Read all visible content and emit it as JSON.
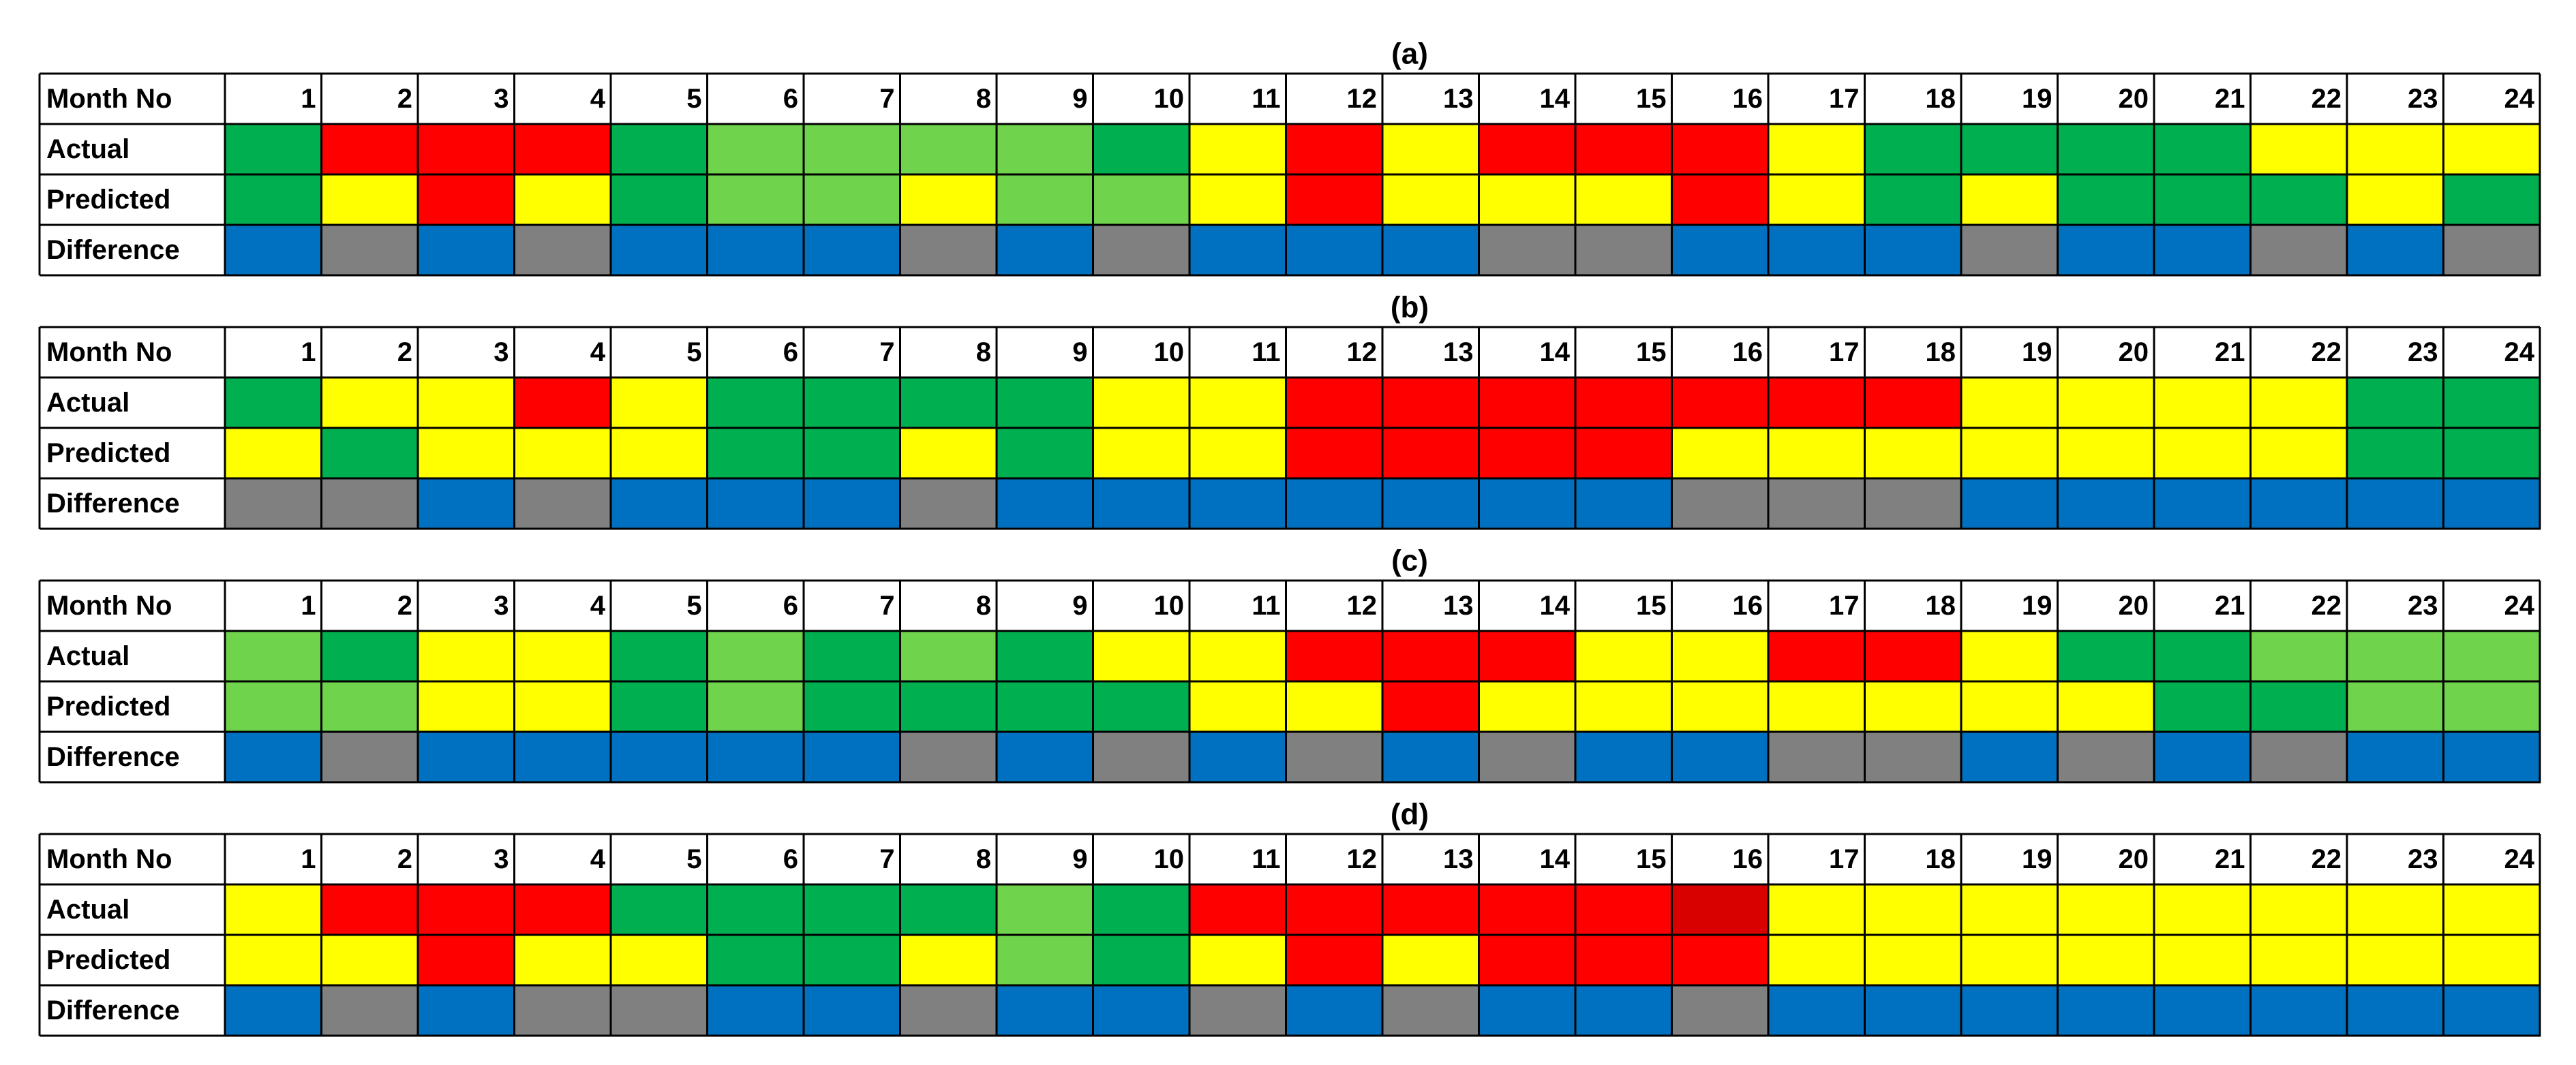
{
  "chart_data": {
    "type": "table",
    "months": [
      "1",
      "2",
      "3",
      "4",
      "5",
      "6",
      "7",
      "8",
      "9",
      "10",
      "11",
      "12",
      "13",
      "14",
      "15",
      "16",
      "17",
      "18",
      "19",
      "20",
      "21",
      "22",
      "23",
      "24"
    ],
    "row_labels": {
      "month": "Month No",
      "actual": "Actual",
      "predicted": "Predicted",
      "difference": "Difference"
    },
    "colors": {
      "dark_green": "#00B050",
      "light_green": "#6FD44C",
      "yellow": "#FFFF00",
      "red": "#FF0000",
      "dark_red": "#D90000",
      "blue": "#0070C0",
      "gray": "#808080"
    },
    "panels": [
      {
        "title": "(a)",
        "actual": [
          "dark_green",
          "red",
          "red",
          "red",
          "dark_green",
          "light_green",
          "light_green",
          "light_green",
          "light_green",
          "dark_green",
          "yellow",
          "red",
          "yellow",
          "red",
          "red",
          "red",
          "yellow",
          "dark_green",
          "dark_green",
          "dark_green",
          "dark_green",
          "yellow",
          "yellow",
          "yellow"
        ],
        "predicted": [
          "dark_green",
          "yellow",
          "red",
          "yellow",
          "dark_green",
          "light_green",
          "light_green",
          "yellow",
          "light_green",
          "light_green",
          "yellow",
          "red",
          "yellow",
          "yellow",
          "yellow",
          "red",
          "yellow",
          "dark_green",
          "yellow",
          "dark_green",
          "dark_green",
          "dark_green",
          "yellow",
          "dark_green"
        ],
        "difference": [
          "blue",
          "gray",
          "blue",
          "gray",
          "blue",
          "blue",
          "blue",
          "gray",
          "blue",
          "gray",
          "blue",
          "blue",
          "blue",
          "gray",
          "gray",
          "blue",
          "blue",
          "blue",
          "gray",
          "blue",
          "blue",
          "gray",
          "blue",
          "gray"
        ]
      },
      {
        "title": "(b)",
        "actual": [
          "dark_green",
          "yellow",
          "yellow",
          "red",
          "yellow",
          "dark_green",
          "dark_green",
          "dark_green",
          "dark_green",
          "yellow",
          "yellow",
          "red",
          "red",
          "red",
          "red",
          "red",
          "red",
          "red",
          "yellow",
          "yellow",
          "yellow",
          "yellow",
          "dark_green",
          "dark_green"
        ],
        "predicted": [
          "yellow",
          "dark_green",
          "yellow",
          "yellow",
          "yellow",
          "dark_green",
          "dark_green",
          "yellow",
          "dark_green",
          "yellow",
          "yellow",
          "red",
          "red",
          "red",
          "red",
          "yellow",
          "yellow",
          "yellow",
          "yellow",
          "yellow",
          "yellow",
          "yellow",
          "dark_green",
          "dark_green"
        ],
        "difference": [
          "gray",
          "gray",
          "blue",
          "gray",
          "blue",
          "blue",
          "blue",
          "gray",
          "blue",
          "blue",
          "blue",
          "blue",
          "blue",
          "blue",
          "blue",
          "gray",
          "gray",
          "gray",
          "blue",
          "blue",
          "blue",
          "blue",
          "blue",
          "blue"
        ]
      },
      {
        "title": "(c)",
        "actual": [
          "light_green",
          "dark_green",
          "yellow",
          "yellow",
          "dark_green",
          "light_green",
          "dark_green",
          "light_green",
          "dark_green",
          "yellow",
          "yellow",
          "red",
          "red",
          "red",
          "yellow",
          "yellow",
          "red",
          "red",
          "yellow",
          "dark_green",
          "dark_green",
          "light_green",
          "light_green",
          "light_green"
        ],
        "predicted": [
          "light_green",
          "light_green",
          "yellow",
          "yellow",
          "dark_green",
          "light_green",
          "dark_green",
          "dark_green",
          "dark_green",
          "dark_green",
          "yellow",
          "yellow",
          "red",
          "yellow",
          "yellow",
          "yellow",
          "yellow",
          "yellow",
          "yellow",
          "yellow",
          "dark_green",
          "dark_green",
          "light_green",
          "light_green"
        ],
        "difference": [
          "blue",
          "gray",
          "blue",
          "blue",
          "blue",
          "blue",
          "blue",
          "gray",
          "blue",
          "gray",
          "blue",
          "gray",
          "blue",
          "gray",
          "blue",
          "blue",
          "gray",
          "gray",
          "blue",
          "gray",
          "blue",
          "gray",
          "blue",
          "blue"
        ]
      },
      {
        "title": "(d)",
        "actual": [
          "yellow",
          "red",
          "red",
          "red",
          "dark_green",
          "dark_green",
          "dark_green",
          "dark_green",
          "light_green",
          "dark_green",
          "red",
          "red",
          "red",
          "red",
          "red",
          "dark_red",
          "yellow",
          "yellow",
          "yellow",
          "yellow",
          "yellow",
          "yellow",
          "yellow",
          "yellow"
        ],
        "predicted": [
          "yellow",
          "yellow",
          "red",
          "yellow",
          "yellow",
          "dark_green",
          "dark_green",
          "yellow",
          "light_green",
          "dark_green",
          "yellow",
          "red",
          "yellow",
          "red",
          "red",
          "red",
          "yellow",
          "yellow",
          "yellow",
          "yellow",
          "yellow",
          "yellow",
          "yellow",
          "yellow"
        ],
        "difference": [
          "blue",
          "gray",
          "blue",
          "gray",
          "gray",
          "blue",
          "blue",
          "gray",
          "blue",
          "blue",
          "gray",
          "blue",
          "gray",
          "blue",
          "blue",
          "gray",
          "blue",
          "blue",
          "blue",
          "blue",
          "blue",
          "blue",
          "blue",
          "blue"
        ]
      }
    ]
  }
}
